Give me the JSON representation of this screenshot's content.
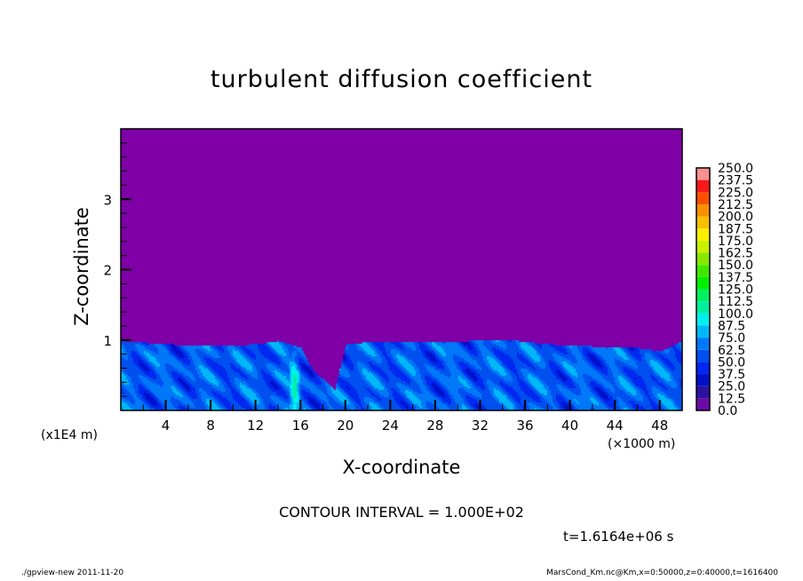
{
  "chart_data": {
    "type": "heatmap",
    "title": "turbulent diffusion coefficient",
    "xlabel": "X-coordinate",
    "ylabel": "Z-coordinate",
    "x_unit": "(×1000 m)",
    "y_unit": "(x1E4 m)",
    "xlim": [
      0,
      50
    ],
    "ylim": [
      0,
      4
    ],
    "x_ticks": [
      "4",
      "8",
      "12",
      "16",
      "20",
      "24",
      "28",
      "32",
      "36",
      "40",
      "44",
      "48"
    ],
    "y_ticks": [
      "1",
      "2",
      "3"
    ],
    "colorbar": {
      "levels": [
        "0.0",
        "12.5",
        "25.0",
        "37.5",
        "50.0",
        "62.5",
        "75.0",
        "87.5",
        "100.0",
        "112.5",
        "125.0",
        "137.5",
        "150.0",
        "162.5",
        "175.0",
        "187.5",
        "200.0",
        "212.5",
        "225.0",
        "237.5",
        "250.0"
      ],
      "colors": [
        "#6c0aa8",
        "#2c12a0",
        "#0010c8",
        "#0028f0",
        "#0050f0",
        "#0078f8",
        "#00b8f8",
        "#00f0f0",
        "#00f0a0",
        "#00f060",
        "#00f000",
        "#40e800",
        "#88e800",
        "#c8f000",
        "#f8f000",
        "#f8c000",
        "#f89000",
        "#f85000",
        "#f81818",
        "#f86060"
      ],
      "top_color": "#f89090"
    },
    "background_color": "#7f00a6",
    "turbulent_layer_top": {
      "x": [
        0,
        4,
        8,
        12,
        14,
        16,
        17,
        19,
        20,
        22,
        26,
        30,
        34,
        38,
        42,
        46,
        48,
        50
      ],
      "z": [
        1.0,
        0.95,
        0.93,
        0.95,
        1.0,
        0.9,
        0.6,
        0.3,
        0.95,
        0.98,
        0.98,
        0.99,
        1.02,
        0.95,
        0.92,
        0.9,
        0.85,
        1.0
      ]
    },
    "contour_interval": "CONTOUR INTERVAL = 1.000E+02",
    "time": "t=1.6164e+06 s"
  },
  "footer": {
    "left": "./gpview-new   2011-11-20",
    "right": "MarsCond_Km.nc@Km,x=0:50000,z=0:40000,t=1616400"
  }
}
